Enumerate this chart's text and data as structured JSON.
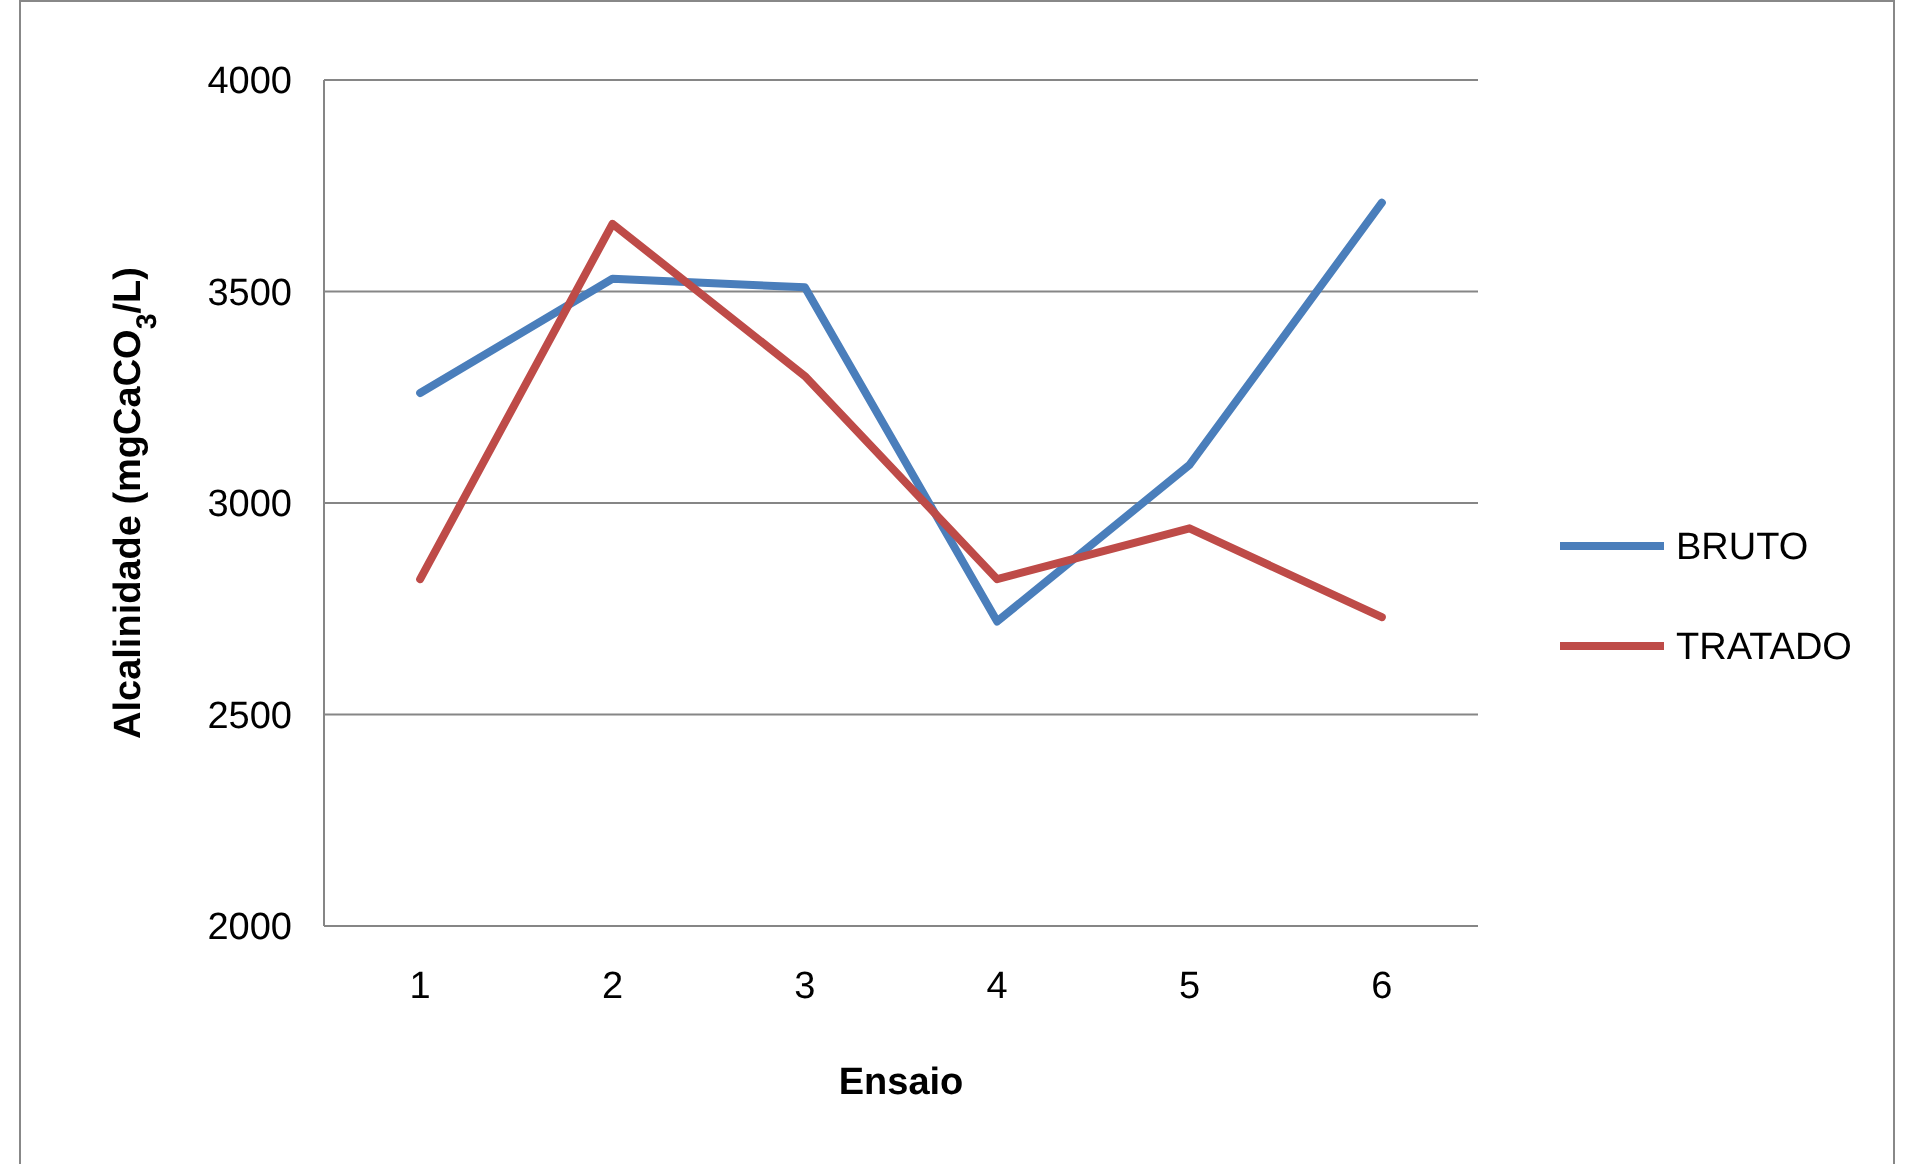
{
  "chart_data": {
    "type": "line",
    "xlabel": "Ensaio",
    "ylabel": "Alcalinidade (mgCaCO$_{3}$/L)",
    "categories": [
      "1",
      "2",
      "3",
      "4",
      "5",
      "6"
    ],
    "series": [
      {
        "name": "BRUTO",
        "color": "#4a7ebb",
        "values": [
          3260,
          3530,
          3510,
          2720,
          3090,
          3710
        ]
      },
      {
        "name": "TRATADO",
        "color": "#be4b48",
        "values": [
          2820,
          3660,
          3300,
          2820,
          2940,
          2730
        ]
      }
    ],
    "ylim": [
      2000,
      4000
    ],
    "yticks": [
      2000,
      2500,
      3000,
      3500,
      4000
    ],
    "grid": "y",
    "legend": "right",
    "marker": "none",
    "line_style": "solid"
  }
}
